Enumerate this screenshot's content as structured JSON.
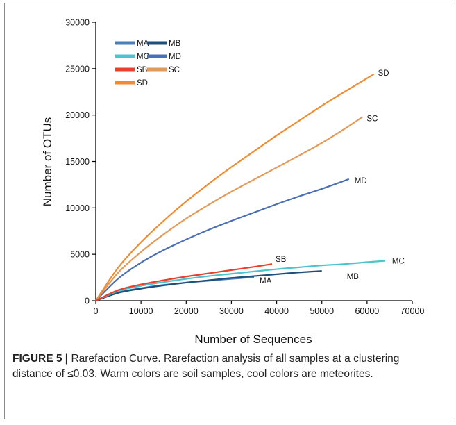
{
  "chart_data": {
    "type": "line",
    "xlabel": "Number  of Sequences",
    "ylabel": "Number of OTUs",
    "xlim": [
      0,
      70000
    ],
    "ylim": [
      0,
      30000
    ],
    "xticks": [
      "0",
      "10000",
      "20000",
      "30000",
      "40000",
      "50000",
      "60000",
      "70000"
    ],
    "yticks": [
      "0",
      "5000",
      "10000",
      "15000",
      "20000",
      "25000",
      "30000"
    ],
    "grid": false,
    "legend_position": "top-left",
    "legend": [
      {
        "name": "MA",
        "color": "#4a7ebb"
      },
      {
        "name": "MB",
        "color": "#1f4e79"
      },
      {
        "name": "MC",
        "color": "#4bc4cf"
      },
      {
        "name": "MD",
        "color": "#4a6fb5"
      },
      {
        "name": "SB",
        "color": "#e8402a"
      },
      {
        "name": "SC",
        "color": "#e39a57"
      },
      {
        "name": "SD",
        "color": "#f28a2e"
      }
    ],
    "series": [
      {
        "name": "MA",
        "color": "#4a7ebb",
        "x": [
          0,
          5000,
          10000,
          15000,
          20000,
          25000,
          30000,
          35000
        ],
        "y": [
          0,
          900,
          1350,
          1700,
          1950,
          2150,
          2350,
          2550
        ]
      },
      {
        "name": "MB",
        "color": "#1f4e79",
        "x": [
          0,
          5000,
          10000,
          15000,
          20000,
          25000,
          30000,
          35000,
          40000,
          45000,
          50000
        ],
        "y": [
          0,
          850,
          1300,
          1650,
          1950,
          2200,
          2450,
          2650,
          2850,
          3050,
          3200
        ]
      },
      {
        "name": "MC",
        "color": "#4bc4cf",
        "x": [
          0,
          5000,
          10000,
          15000,
          20000,
          25000,
          30000,
          35000,
          40000,
          45000,
          50000,
          55000,
          60000,
          64000
        ],
        "y": [
          0,
          1050,
          1600,
          2000,
          2350,
          2650,
          2900,
          3150,
          3400,
          3600,
          3800,
          3950,
          4150,
          4300
        ]
      },
      {
        "name": "MD",
        "color": "#4a6fb5",
        "x": [
          0,
          5000,
          10000,
          15000,
          20000,
          25000,
          30000,
          35000,
          40000,
          45000,
          50000,
          56000
        ],
        "y": [
          0,
          2400,
          4100,
          5450,
          6600,
          7650,
          8600,
          9500,
          10400,
          11250,
          12050,
          13100
        ]
      },
      {
        "name": "SB",
        "color": "#e8402a",
        "x": [
          0,
          5000,
          10000,
          15000,
          20000,
          25000,
          30000,
          35000,
          39000
        ],
        "y": [
          0,
          1150,
          1750,
          2200,
          2600,
          2950,
          3300,
          3650,
          3950
        ]
      },
      {
        "name": "SC",
        "color": "#e39a57",
        "x": [
          0,
          5000,
          10000,
          15000,
          20000,
          25000,
          30000,
          35000,
          40000,
          45000,
          50000,
          55000,
          59000
        ],
        "y": [
          0,
          3050,
          5250,
          7150,
          8850,
          10350,
          11750,
          13050,
          14350,
          15650,
          17000,
          18500,
          19800
        ]
      },
      {
        "name": "SD",
        "color": "#f28a2e",
        "x": [
          0,
          5000,
          10000,
          15000,
          20000,
          25000,
          30000,
          35000,
          40000,
          45000,
          50000,
          55000,
          61500
        ],
        "y": [
          0,
          3600,
          6300,
          8600,
          10700,
          12600,
          14400,
          16100,
          17800,
          19400,
          21000,
          22500,
          24400
        ]
      }
    ]
  },
  "caption": {
    "lead": "FIGURE 5 |",
    "text": " Rarefaction Curve. Rarefaction analysis of all samples at a clustering distance of ≤0.03. Warm colors are soil samples, cool colors are meteorites."
  }
}
